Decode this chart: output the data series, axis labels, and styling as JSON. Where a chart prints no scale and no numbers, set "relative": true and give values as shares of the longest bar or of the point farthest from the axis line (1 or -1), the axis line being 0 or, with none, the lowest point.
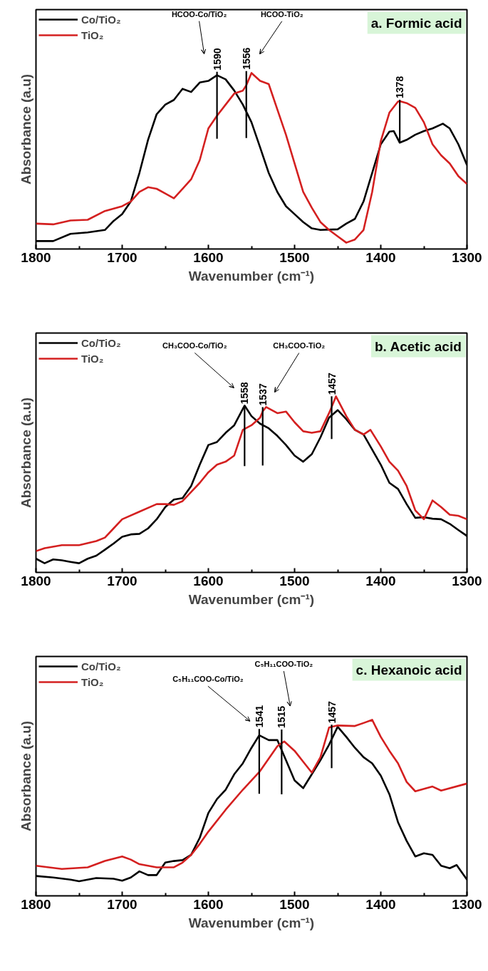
{
  "chart_data": [
    {
      "type": "line",
      "title": "a. Formic acid",
      "xlabel": "Wavenumber (cm⁻¹)",
      "ylabel": "Absorbance (a.u)",
      "relative": true,
      "legend": "top left",
      "line_style": "solid",
      "xlim": [
        1800,
        1300
      ],
      "xticks": [
        1800,
        {
          "value": 1750,
          "label": null
        },
        1700,
        {
          "value": 1650,
          "label": null
        },
        1600,
        {
          "value": 1550,
          "label": null
        },
        1500,
        {
          "value": 1450,
          "label": null
        },
        1400,
        {
          "value": 1350,
          "label": null
        },
        1300
      ],
      "series": [
        {
          "name": "Co/TiO₂",
          "color": "#000000",
          "x": [
            1800,
            1780,
            1760,
            1740,
            1720,
            1710,
            1700,
            1690,
            1680,
            1670,
            1660,
            1650,
            1640,
            1630,
            1620,
            1610,
            1600,
            1590,
            1580,
            1570,
            1560,
            1550,
            1540,
            1530,
            1520,
            1510,
            1500,
            1490,
            1480,
            1470,
            1450,
            1440,
            1430,
            1420,
            1410,
            1400,
            1390,
            1385,
            1378,
            1370,
            1360,
            1350,
            1340,
            1328,
            1320,
            1310,
            1300
          ],
          "values": [
            0.045,
            0.045,
            0.086,
            0.094,
            0.108,
            0.159,
            0.198,
            0.27,
            0.432,
            0.62,
            0.766,
            0.82,
            0.847,
            0.91,
            0.892,
            0.946,
            0.955,
            0.987,
            0.964,
            0.9,
            0.82,
            0.72,
            0.577,
            0.432,
            0.324,
            0.243,
            0.198,
            0.153,
            0.117,
            0.108,
            0.112,
            0.144,
            0.171,
            0.27,
            0.432,
            0.595,
            0.667,
            0.67,
            0.604,
            0.62,
            0.649,
            0.67,
            0.685,
            0.712,
            0.685,
            0.595,
            0.477
          ]
        },
        {
          "name": "TiO₂",
          "color": "#d42020",
          "x": [
            1800,
            1780,
            1760,
            1740,
            1720,
            1700,
            1690,
            1680,
            1670,
            1660,
            1650,
            1640,
            1630,
            1620,
            1610,
            1600,
            1590,
            1580,
            1570,
            1560,
            1556,
            1550,
            1540,
            1530,
            1520,
            1510,
            1500,
            1490,
            1480,
            1470,
            1460,
            1450,
            1440,
            1430,
            1420,
            1410,
            1400,
            1390,
            1380,
            1378,
            1370,
            1360,
            1350,
            1340,
            1330,
            1320,
            1310,
            1300
          ],
          "values": [
            0.144,
            0.14,
            0.162,
            0.166,
            0.216,
            0.243,
            0.27,
            0.324,
            0.351,
            0.342,
            0.315,
            0.288,
            0.342,
            0.396,
            0.505,
            0.685,
            0.757,
            0.82,
            0.883,
            0.9,
            0.93,
            1.0,
            0.955,
            0.937,
            0.793,
            0.649,
            0.486,
            0.324,
            0.234,
            0.153,
            0.108,
            0.072,
            0.036,
            0.054,
            0.108,
            0.324,
            0.613,
            0.775,
            0.838,
            0.84,
            0.829,
            0.802,
            0.72,
            0.595,
            0.532,
            0.486,
            0.414,
            0.369
          ]
        }
      ],
      "annotations": [
        {
          "text": "1590",
          "x": 1590,
          "y": 0.987
        },
        {
          "text": "1556",
          "x": 1556,
          "y": 0.93
        },
        {
          "text": "1378",
          "x": 1378,
          "y": 0.84
        },
        "HCOO-Co/TiO₂",
        "HCOO-TiO₂"
      ]
    },
    {
      "type": "line",
      "title": "b. Acetic acid",
      "xlabel": "Wavenumber (cm⁻¹)",
      "ylabel": "Absorbance (a.u)",
      "relative": true,
      "legend": "top left",
      "line_style": "solid",
      "xlim": [
        1800,
        1300
      ],
      "xticks": [
        1800,
        {
          "value": 1750,
          "label": null
        },
        1700,
        {
          "value": 1650,
          "label": null
        },
        1600,
        {
          "value": 1550,
          "label": null
        },
        1500,
        {
          "value": 1450,
          "label": null
        },
        1400,
        {
          "value": 1350,
          "label": null
        },
        1300
      ],
      "series": [
        {
          "name": "Co/TiO₂",
          "color": "#000000",
          "x": [
            1800,
            1790,
            1780,
            1770,
            1760,
            1750,
            1740,
            1730,
            1720,
            1710,
            1700,
            1690,
            1680,
            1670,
            1660,
            1650,
            1640,
            1630,
            1620,
            1610,
            1600,
            1590,
            1580,
            1570,
            1558,
            1550,
            1540,
            1530,
            1520,
            1510,
            1500,
            1490,
            1480,
            1470,
            1460,
            1450,
            1440,
            1430,
            1420,
            1410,
            1400,
            1390,
            1380,
            1370,
            1360,
            1350,
            1340,
            1330,
            1320,
            1310,
            1300
          ],
          "values": [
            0.078,
            0.052,
            0.074,
            0.069,
            0.06,
            0.052,
            0.078,
            0.095,
            0.129,
            0.164,
            0.202,
            0.216,
            0.219,
            0.25,
            0.302,
            0.371,
            0.414,
            0.422,
            0.491,
            0.612,
            0.724,
            0.741,
            0.793,
            0.836,
            0.948,
            0.888,
            0.845,
            0.819,
            0.776,
            0.724,
            0.664,
            0.629,
            0.672,
            0.767,
            0.879,
            0.922,
            0.871,
            0.81,
            0.784,
            0.698,
            0.612,
            0.509,
            0.474,
            0.388,
            0.31,
            0.314,
            0.305,
            0.302,
            0.276,
            0.241,
            0.207
          ]
        },
        {
          "name": "TiO₂",
          "color": "#d42020",
          "x": [
            1800,
            1790,
            1770,
            1750,
            1730,
            1720,
            1710,
            1700,
            1680,
            1660,
            1650,
            1640,
            1630,
            1620,
            1610,
            1600,
            1590,
            1580,
            1570,
            1560,
            1550,
            1540,
            1537,
            1533,
            1520,
            1510,
            1500,
            1490,
            1480,
            1470,
            1460,
            1457,
            1452,
            1440,
            1430,
            1420,
            1412,
            1400,
            1390,
            1380,
            1370,
            1360,
            1350,
            1340,
            1330,
            1320,
            1310,
            1300
          ],
          "values": [
            0.121,
            0.138,
            0.155,
            0.155,
            0.178,
            0.198,
            0.25,
            0.302,
            0.345,
            0.388,
            0.388,
            0.384,
            0.405,
            0.457,
            0.509,
            0.569,
            0.612,
            0.629,
            0.664,
            0.81,
            0.836,
            0.879,
            0.915,
            0.94,
            0.905,
            0.914,
            0.853,
            0.802,
            0.793,
            0.802,
            0.905,
            0.94,
            1.0,
            0.888,
            0.81,
            0.784,
            0.81,
            0.716,
            0.629,
            0.578,
            0.491,
            0.353,
            0.302,
            0.409,
            0.371,
            0.328,
            0.322,
            0.302
          ]
        }
      ],
      "annotations": [
        {
          "text": "1558",
          "x": 1558,
          "y": 0.948
        },
        {
          "text": "1537",
          "x": 1537,
          "y": 0.915
        },
        {
          "text": "1457",
          "x": 1457,
          "y": 0.94
        },
        "CH₃COO-Co/TiO₂",
        "CH₃COO-TiO₂"
      ]
    },
    {
      "type": "line",
      "title": "c. Hexanoic acid",
      "xlabel": "Wavenumber (cm⁻¹)",
      "ylabel": "Absorbance (a.u)",
      "relative": true,
      "legend": "top left",
      "line_style": "solid",
      "xlim": [
        1800,
        1300
      ],
      "xticks": [
        1800,
        {
          "value": 1750,
          "label": null
        },
        1700,
        {
          "value": 1650,
          "label": null
        },
        1600,
        {
          "value": 1550,
          "label": null
        },
        1500,
        {
          "value": 1450,
          "label": null
        },
        1400,
        {
          "value": 1350,
          "label": null
        },
        1300
      ],
      "series": [
        {
          "name": "Co/TiO₂",
          "color": "#000000",
          "x": [
            1800,
            1780,
            1760,
            1750,
            1730,
            1710,
            1700,
            1690,
            1680,
            1670,
            1660,
            1650,
            1640,
            1630,
            1620,
            1610,
            1600,
            1590,
            1580,
            1570,
            1560,
            1550,
            1541,
            1530,
            1520,
            1510,
            1500,
            1490,
            1480,
            1470,
            1460,
            1450,
            1440,
            1430,
            1420,
            1410,
            1400,
            1390,
            1380,
            1370,
            1360,
            1350,
            1340,
            1330,
            1320,
            1312,
            1300
          ],
          "values": [
            0.113,
            0.104,
            0.092,
            0.083,
            0.101,
            0.097,
            0.086,
            0.104,
            0.139,
            0.118,
            0.118,
            0.189,
            0.198,
            0.203,
            0.233,
            0.33,
            0.471,
            0.55,
            0.603,
            0.691,
            0.753,
            0.841,
            0.912,
            0.885,
            0.885,
            0.771,
            0.656,
            0.612,
            0.691,
            0.771,
            0.859,
            0.961,
            0.903,
            0.841,
            0.788,
            0.753,
            0.683,
            0.577,
            0.418,
            0.312,
            0.224,
            0.242,
            0.233,
            0.171,
            0.157,
            0.175,
            0.092
          ]
        },
        {
          "name": "TiO₂",
          "color": "#d42020",
          "x": [
            1800,
            1770,
            1740,
            1720,
            1700,
            1690,
            1680,
            1660,
            1640,
            1630,
            1620,
            1610,
            1600,
            1580,
            1560,
            1540,
            1520,
            1515,
            1512,
            1500,
            1490,
            1480,
            1470,
            1460,
            1457,
            1450,
            1430,
            1420,
            1410,
            1400,
            1390,
            1380,
            1370,
            1360,
            1340,
            1330,
            1300
          ],
          "values": [
            0.171,
            0.153,
            0.162,
            0.198,
            0.224,
            0.206,
            0.18,
            0.162,
            0.162,
            0.189,
            0.233,
            0.295,
            0.365,
            0.489,
            0.603,
            0.709,
            0.85,
            0.868,
            0.877,
            0.824,
            0.762,
            0.7,
            0.788,
            0.956,
            0.96,
            0.968,
            0.965,
            0.982,
            1.0,
            0.903,
            0.824,
            0.753,
            0.647,
            0.594,
            0.621,
            0.598,
            0.638
          ]
        }
      ],
      "annotations": [
        {
          "text": "1541",
          "x": 1541,
          "y": 0.912
        },
        {
          "text": "1515",
          "x": 1515,
          "y": 0.868
        },
        {
          "text": "1457",
          "x": 1457,
          "y": 0.96
        },
        "C₅H₁₁COO-Co/TiO₂",
        "C₅H₁₁COO-TiO₂"
      ]
    }
  ]
}
